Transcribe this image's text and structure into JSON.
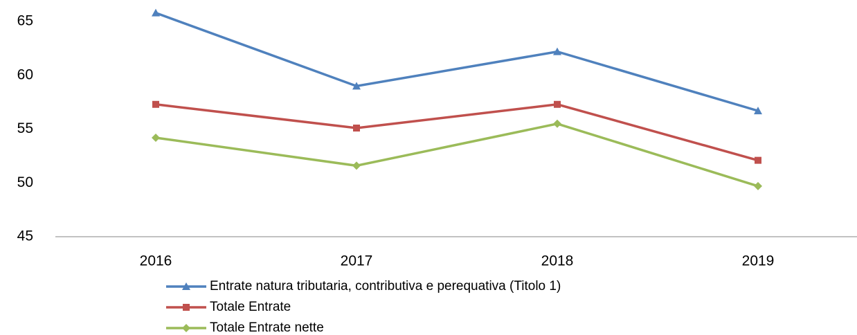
{
  "chart_data": {
    "type": "line",
    "categories": [
      "2016",
      "2017",
      "2018",
      "2019"
    ],
    "series": [
      {
        "name": "Entrate natura tributaria, contributiva e perequativa (Titolo 1)",
        "color": "#4f81bd",
        "marker": "triangle",
        "values": [
          65.8,
          59.0,
          62.2,
          56.7
        ]
      },
      {
        "name": "Totale Entrate",
        "color": "#c0504d",
        "marker": "square",
        "values": [
          57.3,
          55.1,
          57.3,
          52.1
        ]
      },
      {
        "name": "Totale Entrate nette",
        "color": "#9bbb59",
        "marker": "diamond",
        "values": [
          54.2,
          51.6,
          55.5,
          49.7
        ]
      }
    ],
    "ylim": [
      45,
      67
    ],
    "yticks": [
      45,
      50,
      55,
      60,
      65
    ],
    "grid": false,
    "legend": "bottom"
  }
}
